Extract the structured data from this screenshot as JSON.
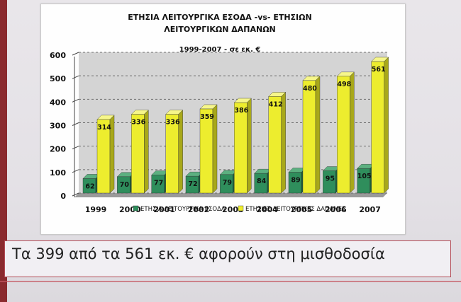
{
  "caption": "Τα 399 από τα 561 εκ. € αφορούν στη μισθοδοσία",
  "colors": {
    "income": "#2f8e5c",
    "expense": "#eded2e",
    "plot_bg": "#d4d4d4",
    "accent": "#b24a55"
  },
  "chart_data": {
    "type": "bar",
    "title": "ΕΤΗΣΙΑ ΛΕΙΤΟΥΡΓΙΚΑ ΕΣΟΔΑ -vs- ΕΤΗΣΙΩΝ ΛΕΙΤΟΥΡΓΙΚΩΝ ΔΑΠΑΝΩΝ",
    "title_lines": [
      "ΕΤΗΣΙΑ ΛΕΙΤΟΥΡΓΙΚΑ ΕΣΟΔΑ -vs- ΕΤΗΣΙΩΝ",
      "ΛΕΙΤΟΥΡΓΙΚΩΝ ΔΑΠΑΝΩΝ"
    ],
    "subtitle": "1999-2007 - σε εκ. €",
    "categories": [
      "1999",
      "2000",
      "2001",
      "2002",
      "2003",
      "2004",
      "2005",
      "2006",
      "2007"
    ],
    "series": [
      {
        "name": "ΕΤΗΣΙΑ ΛΕΙΤΟΥΡΓΙΚΑ ΕΣΟΔΑ",
        "values": [
          62,
          70,
          77,
          72,
          79,
          84,
          89,
          95,
          105
        ]
      },
      {
        "name": "ΕΤΗΣΙΕΣ ΛΕΙΤΟΥΡΓΙΚΕΣ ΔΑΠΑΝΕΣ",
        "values": [
          314,
          336,
          336,
          359,
          386,
          412,
          480,
          498,
          561
        ]
      }
    ],
    "ylim": [
      0,
      600
    ],
    "yticks": [
      0,
      100,
      200,
      300,
      400,
      500,
      600
    ],
    "grid": true,
    "legend": "bottom",
    "xlabel": "",
    "ylabel": ""
  }
}
